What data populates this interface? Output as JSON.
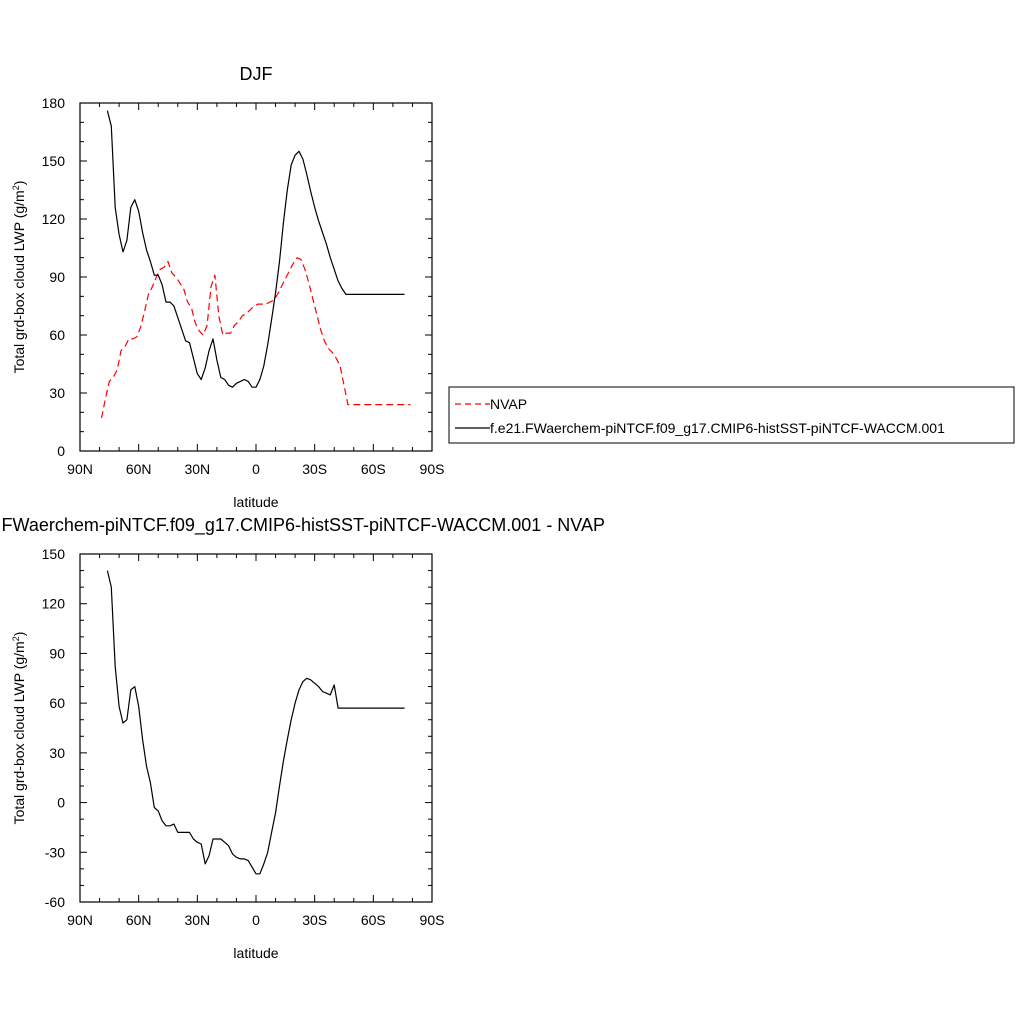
{
  "chart_data": [
    {
      "type": "line",
      "title": "DJF",
      "xlabel": "latitude",
      "ylabel": "Total grd-box cloud LWP (g/m",
      "ylabel_sup": "2",
      "ylabel_end": ")",
      "xlim": [
        90,
        -90
      ],
      "ylim": [
        0,
        180
      ],
      "x_ticks": [
        90,
        60,
        30,
        0,
        -30,
        -60,
        -90
      ],
      "x_tick_labels": [
        "90N",
        "60N",
        "30N",
        "0",
        "30S",
        "60S",
        "90S"
      ],
      "y_ticks": [
        0,
        30,
        60,
        90,
        120,
        150,
        180
      ],
      "y_tick_labels": [
        "0",
        "30",
        "60",
        "90",
        "120",
        "150",
        "180"
      ],
      "legend_position": "right",
      "series": [
        {
          "name": "NVAP",
          "color": "#ff0000",
          "dash": "dashed",
          "x": [
            79,
            77,
            75,
            73,
            71,
            69,
            67,
            65,
            63,
            61,
            59,
            57,
            55,
            53,
            51,
            49,
            47,
            45,
            43,
            41,
            39,
            37,
            35,
            33,
            31,
            29,
            27,
            25,
            23,
            21,
            19,
            17,
            15,
            13,
            11,
            9,
            7,
            5,
            3,
            1,
            -1,
            -3,
            -5,
            -7,
            -9,
            -11,
            -13,
            -15,
            -17,
            -19,
            -21,
            -23,
            -25,
            -27,
            -29,
            -31,
            -33,
            -35,
            -37,
            -39,
            -41,
            -43,
            -45,
            -47,
            -49,
            -51,
            -53,
            -55,
            -57,
            -59,
            -61,
            -63,
            -65,
            -67,
            -69,
            -71,
            -73,
            -75,
            -77,
            -79
          ],
          "y": [
            17,
            27,
            36,
            38,
            42,
            52,
            54,
            58,
            58,
            59,
            64,
            72,
            81,
            85,
            90,
            94,
            95,
            98,
            92,
            90,
            87,
            84,
            77,
            74,
            66,
            62,
            60,
            65,
            85,
            91,
            70,
            60,
            61,
            61,
            65,
            67,
            70,
            71,
            73,
            75,
            76,
            76,
            76,
            77,
            78,
            81,
            85,
            89,
            93,
            97,
            100,
            99,
            94,
            87,
            79,
            71,
            63,
            57,
            53,
            51,
            48,
            44,
            34,
            24,
            24,
            24,
            24,
            24,
            24,
            24,
            24,
            24,
            24,
            24,
            24,
            24,
            24,
            24,
            24,
            24
          ]
        },
        {
          "name": "f.e21.FWaerchem-piNTCF.f09_g17.CMIP6-histSST-piNTCF-WACCM.001",
          "color": "#000000",
          "dash": "solid",
          "x": [
            76,
            74,
            72,
            70,
            68,
            66,
            64,
            62,
            60,
            58,
            56,
            54,
            52,
            50,
            48,
            46,
            44,
            42,
            40,
            38,
            36,
            34,
            32,
            30,
            28,
            26,
            24,
            22,
            20,
            18,
            16,
            14,
            12,
            10,
            8,
            6,
            4,
            2,
            0,
            -2,
            -4,
            -6,
            -8,
            -10,
            -12,
            -14,
            -16,
            -18,
            -20,
            -22,
            -24,
            -26,
            -28,
            -30,
            -32,
            -34,
            -36,
            -38,
            -40,
            -42,
            -44,
            -46,
            -48,
            -50,
            -52,
            -54,
            -56,
            -58,
            -60,
            -62,
            -64,
            -66,
            -68,
            -70,
            -72,
            -74,
            -76
          ],
          "y": [
            176,
            168,
            126,
            112,
            103,
            109,
            126,
            130,
            124,
            113,
            104,
            98,
            91,
            91,
            86,
            77,
            77,
            75,
            69,
            63,
            57,
            56,
            48,
            40,
            37,
            43,
            52,
            58,
            47,
            38,
            37,
            34,
            33,
            35,
            36,
            37,
            36,
            33,
            33,
            37,
            44,
            55,
            68,
            82,
            98,
            118,
            135,
            148,
            153,
            155,
            151,
            143,
            134,
            126,
            119,
            113,
            107,
            100,
            94,
            88,
            84,
            81,
            81,
            81,
            81,
            81,
            81,
            81,
            81,
            81,
            81,
            81,
            81,
            81,
            81,
            81,
            81
          ]
        }
      ]
    },
    {
      "type": "line",
      "title": "f.e21.FWaerchem-piNTCF.f09_g17.CMIP6-histSST-piNTCF-WACCM.001 - NVAP",
      "xlabel": "latitude",
      "ylabel": "Total grd-box cloud LWP (g/m",
      "ylabel_sup": "2",
      "ylabel_end": ")",
      "xlim": [
        90,
        -90
      ],
      "ylim": [
        -60,
        150
      ],
      "x_ticks": [
        90,
        60,
        30,
        0,
        -30,
        -60,
        -90
      ],
      "x_tick_labels": [
        "90N",
        "60N",
        "30N",
        "0",
        "30S",
        "60S",
        "90S"
      ],
      "y_ticks": [
        -60,
        -30,
        0,
        30,
        60,
        90,
        120,
        150
      ],
      "y_tick_labels": [
        "-60",
        "-30",
        "0",
        "30",
        "60",
        "90",
        "120",
        "150"
      ],
      "series": [
        {
          "color": "#000000",
          "dash": "solid",
          "x": [
            76,
            74,
            72,
            70,
            68,
            66,
            64,
            62,
            60,
            58,
            56,
            54,
            52,
            50,
            48,
            46,
            44,
            42,
            40,
            38,
            36,
            34,
            32,
            30,
            28,
            26,
            24,
            22,
            20,
            18,
            16,
            14,
            12,
            10,
            8,
            6,
            4,
            2,
            0,
            -2,
            -4,
            -6,
            -8,
            -10,
            -12,
            -14,
            -16,
            -18,
            -20,
            -22,
            -24,
            -26,
            -28,
            -30,
            -32,
            -34,
            -36,
            -38,
            -40,
            -42,
            -44,
            -46,
            -48,
            -50,
            -52,
            -54,
            -56,
            -58,
            -60,
            -62,
            -64,
            -66,
            -68,
            -70,
            -72,
            -74,
            -76
          ],
          "y": [
            140,
            130,
            82,
            58,
            48,
            50,
            68,
            70,
            58,
            38,
            22,
            12,
            -3,
            -5,
            -11,
            -14,
            -14,
            -13,
            -18,
            -18,
            -18,
            -18,
            -22,
            -24,
            -25,
            -37,
            -32,
            -22,
            -22,
            -22,
            -24,
            -26,
            -31,
            -33,
            -34,
            -34,
            -35,
            -39,
            -43,
            -43,
            -37,
            -30,
            -18,
            -6,
            10,
            25,
            38,
            50,
            60,
            68,
            73,
            75,
            74,
            72,
            70,
            67,
            66,
            65,
            71,
            57,
            57,
            57,
            57,
            57,
            57,
            57,
            57,
            57,
            57,
            57,
            57,
            57,
            57,
            57,
            57,
            57,
            57
          ]
        }
      ]
    }
  ]
}
